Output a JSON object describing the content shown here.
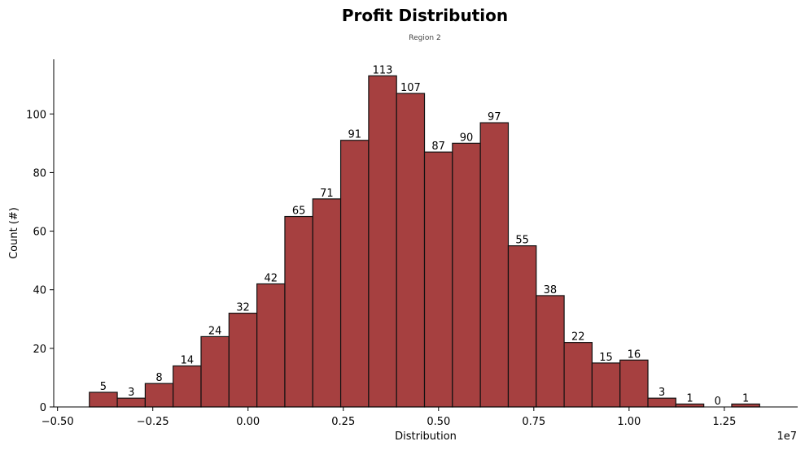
{
  "chart_data": {
    "type": "bar",
    "title": "Profit Distribution",
    "subtitle": "Region 2",
    "xlabel": "Distribution",
    "ylabel": "Count (#)",
    "x_offset_label": "1e7",
    "bar_color": "#a64040",
    "edge_color": "#111111",
    "xlim": [
      -0.51,
      1.4425
    ],
    "ylim": [
      0,
      118.65
    ],
    "bin_start": -0.4165,
    "bin_width": 0.0733,
    "values": [
      5,
      3,
      8,
      14,
      24,
      32,
      42,
      65,
      71,
      91,
      113,
      107,
      87,
      90,
      97,
      55,
      38,
      22,
      15,
      16,
      3,
      1,
      0,
      1
    ],
    "x_ticks": [
      -0.5,
      -0.25,
      0.0,
      0.25,
      0.5,
      0.75,
      1.0,
      1.25
    ],
    "x_tick_labels": [
      "−0.50",
      "−0.25",
      "0.00",
      "0.25",
      "0.50",
      "0.75",
      "1.00",
      "1.25"
    ],
    "y_ticks": [
      0,
      20,
      40,
      60,
      80,
      100
    ],
    "y_tick_labels": [
      "0",
      "20",
      "40",
      "60",
      "80",
      "100"
    ],
    "grid": false,
    "legend": "none"
  }
}
